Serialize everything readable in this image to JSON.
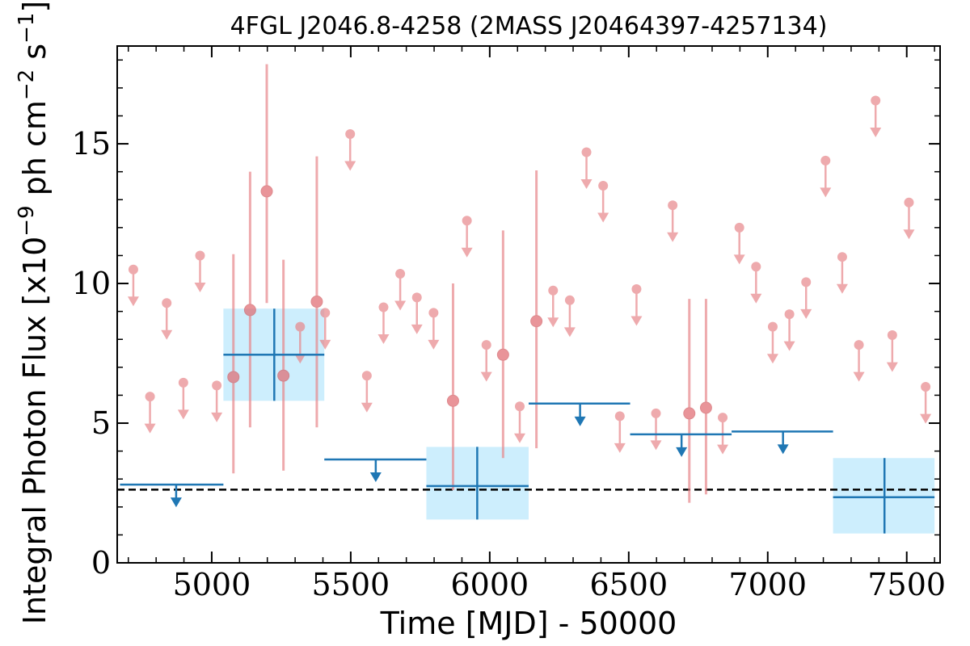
{
  "chart_data": {
    "type": "scatter",
    "title": "4FGL J2046.8-4258 (2MASS J20464397-4257134)",
    "xlabel": "Time [MJD] - 50000",
    "ylabel": "Integral Photon Flux [x10^-9 ph cm^-2 s^-1]",
    "xlim": [
      4660,
      7620
    ],
    "ylim": [
      0,
      18.5
    ],
    "x_ticks": [
      5000,
      5500,
      6000,
      6500,
      7000,
      7500
    ],
    "y_ticks": [
      0,
      5,
      10,
      15
    ],
    "reference_line": {
      "y": 2.62,
      "style": "dashed",
      "color": "#000000"
    },
    "colors": {
      "fine": "#e8878b",
      "coarse": "#1f77b4",
      "coarse_fill": "#cdeefd"
    },
    "series": [
      {
        "name": "",
        "color": "#e8878b",
        "detections": [
          {
            "x": 5078,
            "y": 6.65,
            "ylo": 3.2,
            "yhi": 11.05
          },
          {
            "x": 5138,
            "y": 9.05,
            "ylo": 4.85,
            "yhi": 14.0
          },
          {
            "x": 5198,
            "y": 13.3,
            "ylo": 9.3,
            "yhi": 17.85
          },
          {
            "x": 5258,
            "y": 6.7,
            "ylo": 3.3,
            "yhi": 10.85
          },
          {
            "x": 5378,
            "y": 9.35,
            "ylo": 4.85,
            "yhi": 14.55
          },
          {
            "x": 5868,
            "y": 5.8,
            "ylo": 2.6,
            "yhi": 10.0
          },
          {
            "x": 6048,
            "y": 7.45,
            "ylo": 3.75,
            "yhi": 11.9
          },
          {
            "x": 6168,
            "y": 8.65,
            "ylo": 4.1,
            "yhi": 14.05
          },
          {
            "x": 6718,
            "y": 5.35,
            "ylo": 2.15,
            "yhi": 9.45
          },
          {
            "x": 6778,
            "y": 5.55,
            "ylo": 2.45,
            "yhi": 9.45
          }
        ],
        "upper_limits": [
          {
            "x": 4718,
            "y": 10.5
          },
          {
            "x": 4778,
            "y": 5.95
          },
          {
            "x": 4838,
            "y": 9.3
          },
          {
            "x": 4898,
            "y": 6.45
          },
          {
            "x": 4958,
            "y": 11.0
          },
          {
            "x": 5018,
            "y": 6.35
          },
          {
            "x": 5318,
            "y": 8.45
          },
          {
            "x": 5408,
            "y": 8.95
          },
          {
            "x": 5498,
            "y": 15.35
          },
          {
            "x": 5558,
            "y": 6.7
          },
          {
            "x": 5618,
            "y": 9.15
          },
          {
            "x": 5678,
            "y": 10.35
          },
          {
            "x": 5738,
            "y": 9.5
          },
          {
            "x": 5798,
            "y": 8.95
          },
          {
            "x": 5918,
            "y": 12.25
          },
          {
            "x": 5988,
            "y": 7.8
          },
          {
            "x": 6108,
            "y": 5.6
          },
          {
            "x": 6228,
            "y": 9.75
          },
          {
            "x": 6288,
            "y": 9.4
          },
          {
            "x": 6348,
            "y": 14.7
          },
          {
            "x": 6408,
            "y": 13.5
          },
          {
            "x": 6468,
            "y": 5.25
          },
          {
            "x": 6528,
            "y": 9.8
          },
          {
            "x": 6598,
            "y": 5.35
          },
          {
            "x": 6658,
            "y": 12.8
          },
          {
            "x": 6838,
            "y": 5.2
          },
          {
            "x": 6898,
            "y": 12.0
          },
          {
            "x": 6958,
            "y": 10.6
          },
          {
            "x": 7018,
            "y": 8.45
          },
          {
            "x": 7078,
            "y": 8.9
          },
          {
            "x": 7138,
            "y": 10.05
          },
          {
            "x": 7208,
            "y": 14.4
          },
          {
            "x": 7268,
            "y": 10.95
          },
          {
            "x": 7328,
            "y": 7.8
          },
          {
            "x": 7388,
            "y": 16.55
          },
          {
            "x": 7448,
            "y": 8.15
          },
          {
            "x": 7508,
            "y": 12.9
          },
          {
            "x": 7568,
            "y": 6.3
          }
        ]
      },
      {
        "name": "",
        "color": "#1f77b4",
        "detections": [
          {
            "x0": 5042,
            "x1": 5405,
            "x": 5225,
            "y": 7.45,
            "ylo": 5.8,
            "yhi": 9.1
          },
          {
            "x0": 5772,
            "x1": 6140,
            "x": 5955,
            "y": 2.75,
            "ylo": 1.55,
            "yhi": 4.15
          },
          {
            "x0": 7235,
            "x1": 7600,
            "x": 7420,
            "y": 2.35,
            "ylo": 1.05,
            "yhi": 3.75
          }
        ],
        "upper_limits": [
          {
            "x0": 4670,
            "x1": 5042,
            "x": 4872,
            "y": 2.8
          },
          {
            "x0": 5405,
            "x1": 5772,
            "x": 5590,
            "y": 3.7
          },
          {
            "x0": 6140,
            "x1": 6505,
            "x": 6325,
            "y": 5.7
          },
          {
            "x0": 6505,
            "x1": 6870,
            "x": 6690,
            "y": 4.6
          },
          {
            "x0": 6870,
            "x1": 7235,
            "x": 7055,
            "y": 4.7
          }
        ]
      }
    ]
  }
}
